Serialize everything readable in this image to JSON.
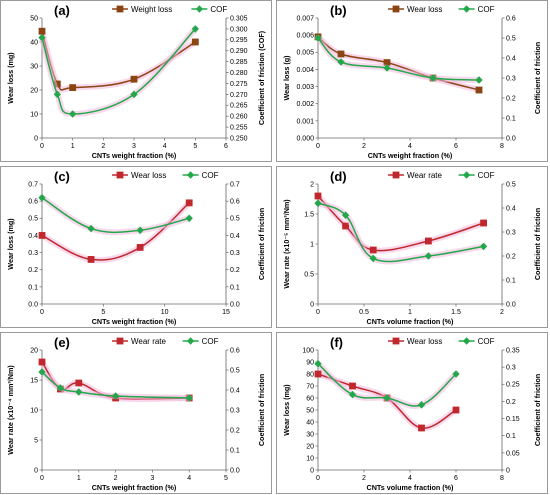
{
  "chart_data": [
    {
      "type": "line",
      "panel_label": "(a)",
      "xlabel": "CNTs weight fraction (%)",
      "ylabel_left": "Wear loss (mg)",
      "ylabel_right": "Coefficient of friction (COF)",
      "xlim": [
        0,
        6
      ],
      "xticks": [
        0,
        1,
        2,
        3,
        4,
        5,
        6
      ],
      "ylim_left": [
        0,
        50
      ],
      "yticks_left": [
        0,
        10,
        20,
        30,
        40,
        50
      ],
      "ylim_right": [
        0.25,
        0.305
      ],
      "yticks_right": [
        0.25,
        0.255,
        0.26,
        0.265,
        0.27,
        0.275,
        0.28,
        0.285,
        0.29,
        0.295,
        0.3,
        0.305
      ],
      "right_tick_decimals": 3,
      "legend_position": "top-center",
      "series": [
        {
          "name": "Weight loss",
          "axis": "left",
          "color": "#8B4513",
          "marker": "square",
          "x": [
            0,
            0.5,
            1,
            3,
            5
          ],
          "y": [
            44.5,
            22.5,
            21,
            24.5,
            40
          ]
        },
        {
          "name": "COF",
          "axis": "right",
          "color": "#22A84A",
          "marker": "diamond",
          "x": [
            0,
            0.5,
            1,
            3,
            5
          ],
          "y": [
            0.296,
            0.27,
            0.261,
            0.27,
            0.3
          ]
        }
      ]
    },
    {
      "type": "line",
      "panel_label": "(b)",
      "xlabel": "CNTs weight fraction (%)",
      "ylabel_left": "Wear loss (g)",
      "ylabel_right": "Coefficient of friction",
      "xlim": [
        0,
        8
      ],
      "xticks": [
        0,
        2,
        4,
        6,
        8
      ],
      "ylim_left": [
        0,
        0.007
      ],
      "yticks_left": [
        0,
        0.001,
        0.002,
        0.003,
        0.004,
        0.005,
        0.006,
        0.007
      ],
      "left_tick_decimals": 3,
      "ylim_right": [
        0,
        0.6
      ],
      "yticks_right": [
        0,
        0.1,
        0.2,
        0.3,
        0.4,
        0.5,
        0.6
      ],
      "right_tick_decimals": 1,
      "legend_position": "top-center",
      "series": [
        {
          "name": "Wear loss",
          "axis": "left",
          "color": "#8B4513",
          "marker": "square",
          "x": [
            0,
            1,
            3,
            5,
            7
          ],
          "y": [
            0.0059,
            0.0049,
            0.0044,
            0.0035,
            0.0028
          ]
        },
        {
          "name": "COF",
          "axis": "right",
          "color": "#22A84A",
          "marker": "diamond",
          "x": [
            0,
            1,
            3,
            5,
            7
          ],
          "y": [
            0.5,
            0.38,
            0.35,
            0.3,
            0.29
          ]
        }
      ]
    },
    {
      "type": "line",
      "panel_label": "(c)",
      "xlabel": "CNTs weight fraction (%)",
      "ylabel_left": "Wear loss (mg)",
      "ylabel_right": "Coefficient of friction",
      "xlim": [
        0,
        15
      ],
      "xticks": [
        0,
        5,
        10,
        15
      ],
      "ylim_left": [
        0,
        0.7
      ],
      "yticks_left": [
        0,
        0.1,
        0.2,
        0.3,
        0.4,
        0.5,
        0.6,
        0.7
      ],
      "left_tick_decimals": 1,
      "ylim_right": [
        0,
        0.7
      ],
      "yticks_right": [
        0,
        0.1,
        0.2,
        0.3,
        0.4,
        0.5,
        0.6,
        0.7
      ],
      "right_tick_decimals": 1,
      "legend_position": "top-center",
      "series": [
        {
          "name": "Wear loss",
          "axis": "left",
          "color": "#C0282D",
          "marker": "square",
          "x": [
            0,
            4,
            8,
            12
          ],
          "y": [
            0.4,
            0.26,
            0.33,
            0.59
          ]
        },
        {
          "name": "COF",
          "axis": "right",
          "color": "#22A84A",
          "marker": "diamond",
          "x": [
            0,
            4,
            8,
            12
          ],
          "y": [
            0.62,
            0.44,
            0.43,
            0.5
          ]
        }
      ]
    },
    {
      "type": "line",
      "panel_label": "(d)",
      "xlabel": "CNTs volume fraction (%)",
      "ylabel_left": "Wear rate (x10⁻⁵ mm³/Nm)",
      "ylabel_right": "Coefficient of friction",
      "xlim": [
        0,
        2
      ],
      "xticks": [
        0,
        0.5,
        1,
        1.5,
        2
      ],
      "ylim_left": [
        0,
        2
      ],
      "yticks_left": [
        0,
        0.5,
        1,
        1.5,
        2
      ],
      "ylim_right": [
        0,
        0.5
      ],
      "yticks_right": [
        0,
        0.1,
        0.2,
        0.3,
        0.4,
        0.5
      ],
      "right_tick_decimals": 1,
      "legend_position": "top-center",
      "series": [
        {
          "name": "Wear rate",
          "axis": "left",
          "color": "#C0282D",
          "marker": "square",
          "x": [
            0,
            0.3,
            0.6,
            1.2,
            1.8
          ],
          "y": [
            1.8,
            1.3,
            0.9,
            1.05,
            1.35
          ]
        },
        {
          "name": "COF",
          "axis": "right",
          "color": "#22A84A",
          "marker": "diamond",
          "x": [
            0,
            0.3,
            0.6,
            1.2,
            1.8
          ],
          "y": [
            0.42,
            0.37,
            0.19,
            0.2,
            0.24
          ]
        }
      ]
    },
    {
      "type": "line",
      "panel_label": "(e)",
      "xlabel": "CNTs weight fraction (%)",
      "ylabel_left": "Wear rate (x10⁻⁴ mm³/Nm)",
      "ylabel_right": "Coefficient of friction",
      "xlim": [
        0,
        5
      ],
      "xticks": [
        0,
        1,
        2,
        3,
        4,
        5
      ],
      "ylim_left": [
        0,
        20
      ],
      "yticks_left": [
        0,
        5,
        10,
        15,
        20
      ],
      "ylim_right": [
        0,
        0.6
      ],
      "yticks_right": [
        0,
        0.1,
        0.2,
        0.3,
        0.4,
        0.5,
        0.6
      ],
      "right_tick_decimals": 1,
      "legend_position": "top-center",
      "series": [
        {
          "name": "Wear rate",
          "axis": "left",
          "color": "#C0282D",
          "marker": "square",
          "x": [
            0,
            0.5,
            1,
            2,
            4
          ],
          "y": [
            18,
            13.5,
            14.5,
            12,
            12
          ]
        },
        {
          "name": "COF",
          "axis": "right",
          "color": "#22A84A",
          "marker": "diamond",
          "x": [
            0,
            0.5,
            1,
            2,
            4
          ],
          "y": [
            0.49,
            0.41,
            0.39,
            0.37,
            0.36
          ]
        }
      ]
    },
    {
      "type": "line",
      "panel_label": "(f)",
      "xlabel": "CNTs volume fraction (%)",
      "ylabel_left": "Wear loss (mg)",
      "ylabel_right": "Coefficient of friction",
      "xlim": [
        0,
        8
      ],
      "xticks": [
        0,
        2,
        4,
        6,
        8
      ],
      "ylim_left": [
        0,
        100
      ],
      "yticks_left": [
        0,
        10,
        20,
        30,
        40,
        50,
        60,
        70,
        80,
        90,
        100
      ],
      "ylim_right": [
        0,
        0.35
      ],
      "yticks_right": [
        0,
        0.05,
        0.1,
        0.15,
        0.2,
        0.25,
        0.3,
        0.35
      ],
      "legend_position": "top-center",
      "series": [
        {
          "name": "Wear loss",
          "axis": "left",
          "color": "#C0282D",
          "marker": "square",
          "x": [
            0,
            1.5,
            3,
            4.5,
            6
          ],
          "y": [
            80,
            70,
            60,
            35,
            50
          ]
        },
        {
          "name": "COF",
          "axis": "right",
          "color": "#22A84A",
          "marker": "diamond",
          "x": [
            0,
            1.5,
            3,
            4.5,
            6
          ],
          "y": [
            0.31,
            0.22,
            0.21,
            0.19,
            0.28
          ]
        }
      ]
    }
  ]
}
